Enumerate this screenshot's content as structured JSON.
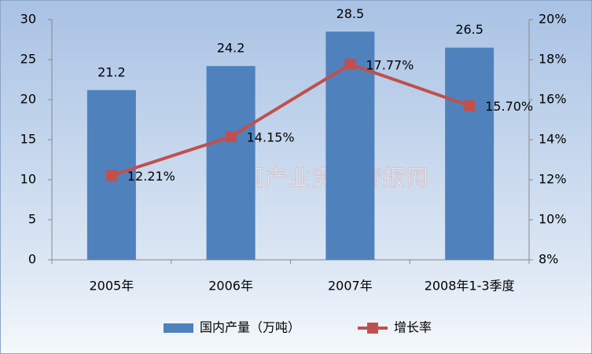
{
  "chart_data": {
    "type": "combo",
    "watermark": "中国产业竞争情报网",
    "categories": [
      "2005年",
      "2006年",
      "2007年",
      "2008年1-3季度"
    ],
    "series": [
      {
        "name": "国内产量（万吨）",
        "type": "bar",
        "color": "#4f81bd",
        "values": [
          21.2,
          24.2,
          28.5,
          26.5
        ]
      },
      {
        "name": "增长率",
        "type": "line",
        "axis": "y2",
        "color": "#c0504d",
        "values": [
          12.21,
          14.15,
          17.77,
          15.7
        ],
        "value_labels": [
          "12.21%",
          "14.15%",
          "17.77%",
          "15.70%"
        ]
      }
    ],
    "ylim": [
      0,
      30
    ],
    "yticks": [
      0,
      5,
      10,
      15,
      20,
      25,
      30
    ],
    "y2lim": [
      8,
      20
    ],
    "y2ticks": [
      {
        "value": 8,
        "label": "8%"
      },
      {
        "value": 10,
        "label": "10%"
      },
      {
        "value": 12,
        "label": "12%"
      },
      {
        "value": 14,
        "label": "14%"
      },
      {
        "value": 16,
        "label": "16%"
      },
      {
        "value": 18,
        "label": "18%"
      },
      {
        "value": 20,
        "label": "20%"
      }
    ],
    "grid": false,
    "legend": "bottom"
  }
}
